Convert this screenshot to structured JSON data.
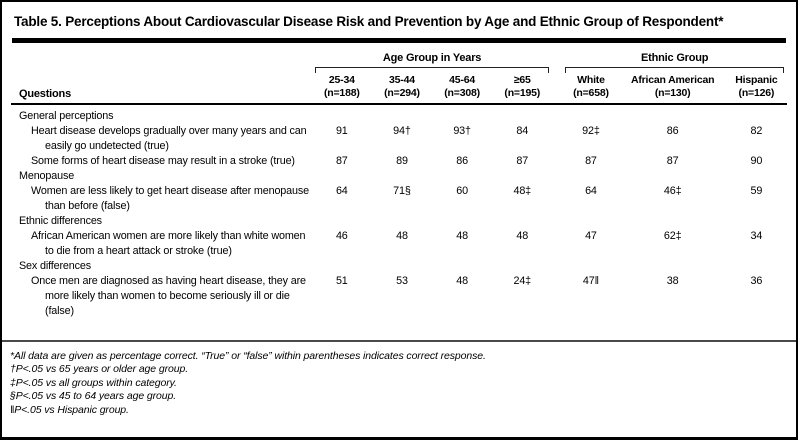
{
  "title": "Table 5. Perceptions About Cardiovascular Disease Risk and Prevention by Age and Ethnic Group of Respondent*",
  "colors": {
    "text": "#000000",
    "background": "#ffffff",
    "rule": "#000000"
  },
  "header": {
    "questions_label": "Questions",
    "groups": [
      {
        "label": "Age Group in Years",
        "columns": [
          {
            "name": "25-34",
            "n": "(n=188)"
          },
          {
            "name": "35-44",
            "n": "(n=294)"
          },
          {
            "name": "45-64",
            "n": "(n=308)"
          },
          {
            "name": "≥65",
            "n": "(n=195)"
          }
        ]
      },
      {
        "label": "Ethnic Group",
        "columns": [
          {
            "name": "White",
            "n": "(n=658)"
          },
          {
            "name": "African American",
            "n": "(n=130)"
          },
          {
            "name": "Hispanic",
            "n": "(n=126)"
          }
        ]
      }
    ]
  },
  "rows": [
    {
      "type": "category",
      "text": "General perceptions"
    },
    {
      "type": "question",
      "text": "Heart disease develops gradually over many years and can easily go undetected (true)",
      "values": [
        "91",
        "94†",
        "93†",
        "84",
        "92‡",
        "86",
        "82"
      ]
    },
    {
      "type": "question",
      "text": "Some forms of heart disease may result in a stroke (true)",
      "values": [
        "87",
        "89",
        "86",
        "87",
        "87",
        "87",
        "90"
      ]
    },
    {
      "type": "category",
      "text": "Menopause"
    },
    {
      "type": "question",
      "text": "Women are less likely to get heart disease after menopause than before (false)",
      "values": [
        "64",
        "71§",
        "60",
        "48‡",
        "64",
        "46‡",
        "59"
      ]
    },
    {
      "type": "category",
      "text": "Ethnic differences"
    },
    {
      "type": "question",
      "text": "African American women are more likely than white women to die from a heart attack or stroke (true)",
      "values": [
        "46",
        "48",
        "48",
        "48",
        "47",
        "62‡",
        "34"
      ]
    },
    {
      "type": "category",
      "text": "Sex differences"
    },
    {
      "type": "question",
      "text": "Once men are diagnosed as having heart disease, they are more likely than women to become seriously ill or die (false)",
      "values": [
        "51",
        "53",
        "48",
        "24‡",
        "47‖",
        "38",
        "36"
      ]
    }
  ],
  "footnotes": [
    "*All data are given as percentage correct. “True” or “false” within parentheses indicates correct response.",
    "†P<.05 vs 65 years or older age group.",
    "‡P<.05 vs all groups within category.",
    "§P<.05 vs 45 to 64 years age group.",
    "‖P<.05 vs Hispanic group."
  ]
}
